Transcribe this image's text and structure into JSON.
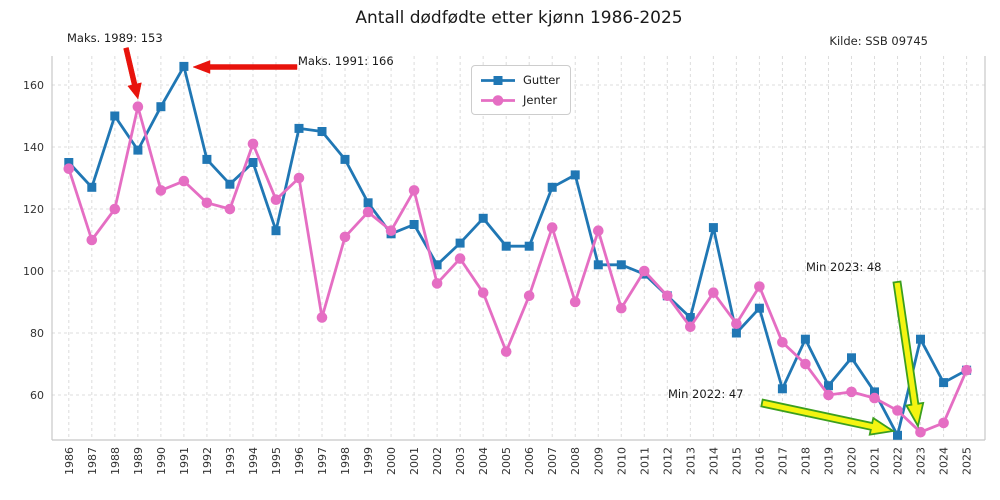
{
  "title": "Antall dødfødte etter kjønn 1986-2025",
  "source": "Kilde: SSB 09745",
  "colors": {
    "grid": "#dcdcdc",
    "spine": "#c8c8c8",
    "tick_label": "#333333",
    "red_arrow": "#e8130c",
    "yellow_arrow_fill": "#f4f411",
    "yellow_arrow_edge": "#3c9f1e"
  },
  "chart_data": {
    "type": "line",
    "x": [
      1986,
      1987,
      1988,
      1989,
      1990,
      1991,
      1992,
      1993,
      1994,
      1995,
      1996,
      1997,
      1998,
      1999,
      2000,
      2001,
      2002,
      2003,
      2004,
      2005,
      2006,
      2007,
      2008,
      2009,
      2010,
      2011,
      2012,
      2013,
      2014,
      2015,
      2016,
      2017,
      2018,
      2019,
      2020,
      2021,
      2022,
      2023,
      2024,
      2025
    ],
    "series": [
      {
        "name": "Gutter",
        "color": "#2077b4",
        "marker": "square",
        "values": [
          135,
          127,
          150,
          139,
          153,
          166,
          136,
          128,
          135,
          113,
          146,
          145,
          136,
          122,
          112,
          115,
          102,
          109,
          117,
          108,
          108,
          127,
          131,
          102,
          102,
          99,
          92,
          85,
          114,
          80,
          88,
          62,
          78,
          63,
          72,
          61,
          47,
          78,
          64,
          68
        ]
      },
      {
        "name": "Jenter",
        "color": "#e56ec3",
        "marker": "circle",
        "values": [
          133,
          110,
          120,
          153,
          126,
          129,
          122,
          120,
          141,
          123,
          130,
          85,
          111,
          119,
          113,
          126,
          96,
          104,
          93,
          74,
          92,
          114,
          90,
          113,
          88,
          100,
          92,
          82,
          93,
          83,
          95,
          77,
          70,
          60,
          61,
          59,
          55,
          48,
          51,
          68
        ]
      }
    ],
    "xlabel": "",
    "ylabel": "",
    "yticks": [
      60,
      80,
      100,
      120,
      140,
      160
    ],
    "ylim": [
      45,
      170
    ],
    "xlim": [
      1985.3,
      2025.8
    ],
    "grid": true,
    "legend_position": "upper center",
    "annotations": [
      {
        "text": "Maks. 1989: 153",
        "target_series": "Jenter",
        "target_year": 1989,
        "target_value": 153,
        "arrow_fill": "#e8130c",
        "arrow_edge": "#e8130c"
      },
      {
        "text": "Maks. 1991: 166",
        "target_series": "Gutter",
        "target_year": 1991,
        "target_value": 166,
        "arrow_fill": "#e8130c",
        "arrow_edge": "#e8130c"
      },
      {
        "text": "Min 2022: 47",
        "target_series": "Gutter",
        "target_year": 2022,
        "target_value": 47,
        "arrow_fill": "#f4f411",
        "arrow_edge": "#3c9f1e"
      },
      {
        "text": "Min 2023: 48",
        "target_series": "Jenter",
        "target_year": 2023,
        "target_value": 48,
        "arrow_fill": "#f4f411",
        "arrow_edge": "#3c9f1e"
      }
    ]
  }
}
